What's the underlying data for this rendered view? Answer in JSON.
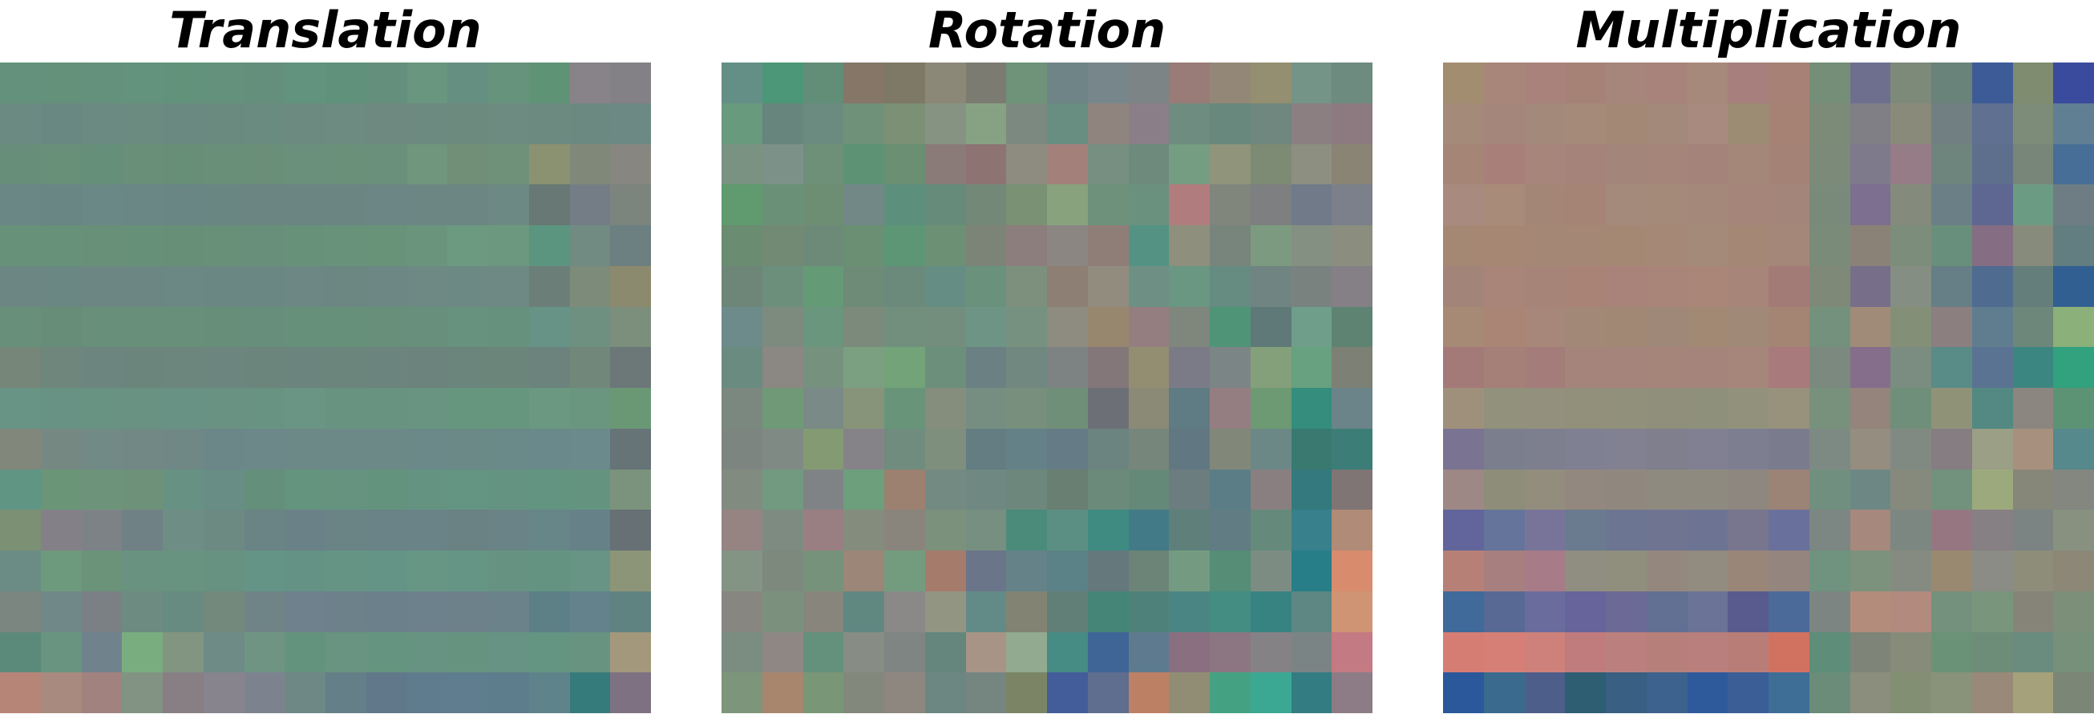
{
  "panels": [
    {
      "id": "translation",
      "title": "Translation",
      "rows": [
        [
          "#63917b",
          "#639179",
          "#64917c",
          "#63927d",
          "#63927b",
          "#63917b",
          "#648f7d",
          "#61937e",
          "#5f917b",
          "#648f7c",
          "#69967f",
          "#658f80",
          "#65937c",
          "#5f9376",
          "#888388",
          "#838086"
        ],
        [
          "#6a8a82",
          "#6a8882",
          "#6a8a82",
          "#6b8a80",
          "#6a8a81",
          "#6a8a80",
          "#6a8b80",
          "#6c8a7f",
          "#6d8b80",
          "#6e8a80",
          "#6c8a80",
          "#6c8a7d",
          "#6d8b80",
          "#6d8a80",
          "#6c8981",
          "#6c8983"
        ],
        [
          "#678e78",
          "#688f78",
          "#658f79",
          "#6a8f78",
          "#678f78",
          "#6a8f79",
          "#6a8e78",
          "#6a907b",
          "#6a907a",
          "#6a8f7a",
          "#70967d",
          "#718e77",
          "#6f917a",
          "#8b9271",
          "#80887a",
          "#878680"
        ],
        [
          "#6a8685",
          "#698685",
          "#6a8885",
          "#6a8685",
          "#698685",
          "#6a8683",
          "#6b8583",
          "#6b8583",
          "#6b8682",
          "#6b8684",
          "#6c8783",
          "#6c8783",
          "#6d8983",
          "#687874",
          "#747d86",
          "#7b847d"
        ],
        [
          "#679179",
          "#68917a",
          "#689079",
          "#679079",
          "#678f78",
          "#689079",
          "#688f79",
          "#68917a",
          "#689279",
          "#689379",
          "#6a957c",
          "#6b9a80",
          "#6c987f",
          "#5b947f",
          "#718b82",
          "#6c7f81"
        ],
        [
          "#6c8683",
          "#6a8784",
          "#6c8684",
          "#6c8684",
          "#6c8884",
          "#6a8784",
          "#6a8783",
          "#6c8784",
          "#6c8682",
          "#6c8784",
          "#6e8984",
          "#6d8983",
          "#6e8983",
          "#6b7f78",
          "#7c8b7a",
          "#8c8a6e"
        ],
        [
          "#678f7a",
          "#678d79",
          "#678f7a",
          "#678f79",
          "#678f79",
          "#678e79",
          "#678e7b",
          "#67907b",
          "#67907a",
          "#678f79",
          "#688f7b",
          "#66927e",
          "#66927d",
          "#679386",
          "#6e9080",
          "#7c8f7c"
        ],
        [
          "#768679",
          "#6f867d",
          "#6c857e",
          "#6c857c",
          "#6d867d",
          "#6c857e",
          "#6b857d",
          "#6b847e",
          "#6b857d",
          "#6b847d",
          "#6c837d",
          "#6b857c",
          "#6c857b",
          "#6b837c",
          "#708779",
          "#6c7778"
        ],
        [
          "#679485",
          "#689283",
          "#689382",
          "#699283",
          "#689283",
          "#699283",
          "#689382",
          "#6a9483",
          "#689381",
          "#689381",
          "#689481",
          "#67967f",
          "#67967e",
          "#6a9880",
          "#6a9680",
          "#6a9875"
        ],
        [
          "#82877c",
          "#758982",
          "#718a85",
          "#718885",
          "#708885",
          "#6c8788",
          "#6c8888",
          "#6d8987",
          "#6c8988",
          "#6c8987",
          "#6b8988",
          "#6b8987",
          "#6a8989",
          "#6a898a",
          "#6b8a8b",
          "#667478"
        ],
        [
          "#609584",
          "#6a9677",
          "#6d947a",
          "#6e9179",
          "#679283",
          "#678d84",
          "#648f7b",
          "#64937e",
          "#659380",
          "#63937d",
          "#649381",
          "#649482",
          "#649381",
          "#629481",
          "#649480",
          "#7b937d"
        ],
        [
          "#7c9074",
          "#848088",
          "#7d8286",
          "#708186",
          "#6d8d85",
          "#6c8a82",
          "#6a8384",
          "#6a8287",
          "#6a8486",
          "#698387",
          "#698387",
          "#6a8284",
          "#698386",
          "#678688",
          "#668288",
          "#667075"
        ],
        [
          "#6a8c84",
          "#6d9a7c",
          "#6b9379",
          "#699380",
          "#689380",
          "#679281",
          "#649486",
          "#649284",
          "#659485",
          "#649485",
          "#679685",
          "#659685",
          "#669381",
          "#649382",
          "#679484",
          "#8d9578"
        ],
        [
          "#7c8680",
          "#718889",
          "#7b8084",
          "#6d8b81",
          "#688b81",
          "#73897c",
          "#6f8487",
          "#6e818c",
          "#6c8189",
          "#6b808b",
          "#6d818c",
          "#6d818b",
          "#6b828b",
          "#5d7f86",
          "#64828b",
          "#5f8381"
        ],
        [
          "#5c8a7a",
          "#699480",
          "#70838d",
          "#79ad80",
          "#829580",
          "#6e8b86",
          "#6f9484",
          "#64937d",
          "#689481",
          "#659580",
          "#679482",
          "#669380",
          "#669384",
          "#649482",
          "#679380",
          "#a3987c"
        ],
        [
          "#b68578",
          "#a88b7e",
          "#a1827e",
          "#829383",
          "#877f84",
          "#87848d",
          "#7c838f",
          "#6e8886",
          "#657f88",
          "#61788b",
          "#5f7c8e",
          "#5f7d8e",
          "#5e7d8c",
          "#5e838a",
          "#367b7c",
          "#7e7282"
        ]
      ]
    },
    {
      "id": "rotation",
      "title": "Rotation",
      "rows": [
        [
          "#648f86",
          "#4c9777",
          "#628e77",
          "#857668",
          "#7e7866",
          "#8b8878",
          "#7c7b71",
          "#6f9378",
          "#6f8487",
          "#77868a",
          "#7d8485",
          "#997c77",
          "#938877",
          "#938f70",
          "#739486",
          "#6d8b7e"
        ],
        [
          "#689a7d",
          "#67857c",
          "#6b8b81",
          "#6f917a",
          "#7b9075",
          "#869382",
          "#87a283",
          "#7c8981",
          "#688e82",
          "#90857e",
          "#8a7f88",
          "#6e8c80",
          "#68887e",
          "#6f877e",
          "#8b7f82",
          "#8c7a80"
        ],
        [
          "#799281",
          "#7c9288",
          "#6e8f78",
          "#5e9274",
          "#6a8f73",
          "#8a7b78",
          "#8d7372",
          "#8e8c80",
          "#a4807b",
          "#768f80",
          "#6d8a7c",
          "#759d82",
          "#8f947a",
          "#7d8a74",
          "#8d8f81",
          "#8a8475"
        ],
        [
          "#5f9b6e",
          "#6a9177",
          "#6e8e73",
          "#718887",
          "#5d8f7d",
          "#668b7b",
          "#748878",
          "#7a9174",
          "#88a27e",
          "#6e917c",
          "#69917d",
          "#b17c7e",
          "#80867b",
          "#7d7f80",
          "#707a89",
          "#7b808b"
        ],
        [
          "#6a8c71",
          "#728a73",
          "#6d8a79",
          "#6a8f73",
          "#5c9675",
          "#6b9073",
          "#7c8377",
          "#8c7e7c",
          "#8b8681",
          "#8f7d77",
          "#549283",
          "#8e8f7c",
          "#77857c",
          "#7c9a7f",
          "#849081",
          "#8b8e7e"
        ],
        [
          "#6e8677",
          "#6c8f7b",
          "#659a77",
          "#6d8b77",
          "#6b8a7c",
          "#668d84",
          "#6a917c",
          "#7d8f7d",
          "#8d7f74",
          "#928c7f",
          "#6e9084",
          "#699782",
          "#668b81",
          "#708582",
          "#7a8280",
          "#848086"
        ],
        [
          "#6e8b8c",
          "#7d8b7f",
          "#69967c",
          "#7c8a7b",
          "#728f7e",
          "#748e7e",
          "#6d9485",
          "#779181",
          "#8e8b80",
          "#98876f",
          "#957e80",
          "#7f867c",
          "#509478",
          "#5f7978",
          "#6f9e8a",
          "#5f8372"
        ],
        [
          "#6a8b7f",
          "#8b8782",
          "#77917f",
          "#7aa081",
          "#73a378",
          "#6c8f7c",
          "#6b8083",
          "#708880",
          "#7d8382",
          "#847779",
          "#938e72",
          "#7b7b88",
          "#7c8585",
          "#83a07b",
          "#68a17f",
          "#7c8075"
        ],
        [
          "#7a887f",
          "#6f9977",
          "#7a8a87",
          "#879479",
          "#68957a",
          "#858d7c",
          "#768e82",
          "#778f7c",
          "#708f78",
          "#6d6f77",
          "#8a8a76",
          "#5f7b83",
          "#947e81",
          "#6d9a72",
          "#348d7d",
          "#6b848a"
        ],
        [
          "#7d8580",
          "#808a85",
          "#839a73",
          "#858388",
          "#6f8c7e",
          "#7e8f7e",
          "#647d82",
          "#648187",
          "#657c86",
          "#6c847f",
          "#77867a",
          "#617883",
          "#818879",
          "#6b8886",
          "#39796f",
          "#3c7e77"
        ],
        [
          "#828b7f",
          "#719a80",
          "#7f8385",
          "#6d9f7c",
          "#9c8070",
          "#738a83",
          "#6f8982",
          "#6d877c",
          "#687f72",
          "#6b8a7a",
          "#658979",
          "#6c7d7f",
          "#5b7d86",
          "#897f80",
          "#34797d",
          "#807575"
        ],
        [
          "#958481",
          "#7e8b81",
          "#9a7f82",
          "#848c7d",
          "#8a857c",
          "#7b917c",
          "#778f80",
          "#4b8b7a",
          "#5c8f83",
          "#3f8b82",
          "#427b87",
          "#5f807a",
          "#627c84",
          "#658a7b",
          "#38808c",
          "#b08b78"
        ],
        [
          "#849484",
          "#7c897c",
          "#77927a",
          "#9b8677",
          "#739c7f",
          "#a57b6c",
          "#6b7589",
          "#648288",
          "#5b8286",
          "#65797d",
          "#6c8477",
          "#749b82",
          "#558d77",
          "#7d8c83",
          "#287e88",
          "#d88c6d"
        ],
        [
          "#888680",
          "#7c917d",
          "#88857c",
          "#618781",
          "#8a8987",
          "#939583",
          "#628b87",
          "#828373",
          "#617f77",
          "#448577",
          "#4e817a",
          "#4b8583",
          "#438d82",
          "#368382",
          "#5e8783",
          "#cf9474"
        ],
        [
          "#7b8c80",
          "#8e8783",
          "#63917b",
          "#878d85",
          "#7e8583",
          "#64867c",
          "#a79486",
          "#91aa90",
          "#468b84",
          "#3f6596",
          "#5e7a8e",
          "#8a6f80",
          "#8b7682",
          "#858286",
          "#7b8485",
          "#c47a82"
        ],
        [
          "#7d957a",
          "#a8866e",
          "#799677",
          "#83887c",
          "#8e8780",
          "#6c8682",
          "#758680",
          "#7b8566",
          "#435d9a",
          "#5f6d8e",
          "#bc8164",
          "#918d74",
          "#44a283",
          "#3ba893",
          "#337c82",
          "#8d7c86"
        ]
      ]
    },
    {
      "id": "multiplication",
      "title": "Multiplication",
      "rows": [
        [
          "#a38d70",
          "#a8877a",
          "#aa827c",
          "#a68276",
          "#a6857b",
          "#a7837b",
          "#a7897b",
          "#a77f7c",
          "#a78076",
          "#748e78",
          "#6e6f8f",
          "#7d8a7a",
          "#69827a",
          "#3d5c97",
          "#7f8c6f",
          "#3a4b9d"
        ],
        [
          "#a48a78",
          "#a4867a",
          "#a38979",
          "#a58979",
          "#a48876",
          "#a28979",
          "#a88a7e",
          "#9c8c74",
          "#a68275",
          "#7c8a78",
          "#7f7f85",
          "#8a8a7a",
          "#717f83",
          "#5f7091",
          "#7d8c79",
          "#617f92"
        ],
        [
          "#a48576",
          "#a97f7a",
          "#a8857b",
          "#a6837a",
          "#a4857a",
          "#a58579",
          "#a4837a",
          "#a58779",
          "#a48276",
          "#7c8a79",
          "#7e7a8c",
          "#967c86",
          "#6e857e",
          "#5e6f8e",
          "#788579",
          "#466e96"
        ],
        [
          "#a88b7e",
          "#a98b79",
          "#a48677",
          "#a58476",
          "#a38a7b",
          "#a48a79",
          "#a48879",
          "#a58579",
          "#a48579",
          "#7a8a7a",
          "#7c6f8f",
          "#848b7c",
          "#6b7f87",
          "#5d6792",
          "#6c9b83",
          "#6d7d83"
        ],
        [
          "#a58874",
          "#a58773",
          "#a58775",
          "#a48775",
          "#a58874",
          "#a58876",
          "#a48a79",
          "#a48774",
          "#a48779",
          "#7a8b7a",
          "#8a8276",
          "#7d8d7b",
          "#688f7b",
          "#856d83",
          "#878b7b",
          "#637e81"
        ],
        [
          "#a38478",
          "#a98479",
          "#a68578",
          "#a98376",
          "#a98279",
          "#a98478",
          "#a98678",
          "#a78579",
          "#a37b76",
          "#7e8a77",
          "#776e8a",
          "#858e82",
          "#667e85",
          "#4f6b90",
          "#637e7b",
          "#325f92"
        ],
        [
          "#a78a76",
          "#aa8575",
          "#a68779",
          "#a28876",
          "#a18875",
          "#a08878",
          "#a18973",
          "#a08977",
          "#a48573",
          "#73917d",
          "#a08b79",
          "#839077",
          "#8c7f80",
          "#5f7d8f",
          "#6d877a",
          "#8bb079"
        ],
        [
          "#a47a79",
          "#a58079",
          "#a47c79",
          "#a5857b",
          "#a5847c",
          "#a58479",
          "#a5847c",
          "#a6857b",
          "#a97a7b",
          "#7c897f",
          "#856e8c",
          "#7a8d80",
          "#598b87",
          "#5b7393",
          "#3c8682",
          "#32a17e"
        ],
        [
          "#9f907b",
          "#91917c",
          "#93907d",
          "#92907a",
          "#91907b",
          "#908f7b",
          "#8e907b",
          "#92917c",
          "#98917c",
          "#78917c",
          "#95847b",
          "#708f7a",
          "#909277",
          "#538982",
          "#8b867f",
          "#5d9375"
        ],
        [
          "#7a7492",
          "#7b7f8d",
          "#7e7f8e",
          "#7f8091",
          "#818192",
          "#7f7f8e",
          "#818093",
          "#7d7f91",
          "#7b7b8e",
          "#7d8a83",
          "#958d7f",
          "#818a82",
          "#857d82",
          "#9a9f86",
          "#a8907e",
          "#55898c"
        ],
        [
          "#9e8886",
          "#8e8d7a",
          "#938d7d",
          "#93887f",
          "#90887f",
          "#8f8a80",
          "#8f8a80",
          "#8e877f",
          "#9b8376",
          "#718f7f",
          "#6d8884",
          "#868a7c",
          "#72927e",
          "#9ca97d",
          "#868778",
          "#848780"
        ],
        [
          "#62659b",
          "#64749a",
          "#787499",
          "#6a7a8f",
          "#6c7591",
          "#6f7491",
          "#6d7493",
          "#78758f",
          "#69709b",
          "#7c8682",
          "#a7887c",
          "#7d8781",
          "#967781",
          "#867f83",
          "#7b8482",
          "#889180"
        ],
        [
          "#b78077",
          "#a67f7e",
          "#a77b88",
          "#8f8e80",
          "#908f7e",
          "#94887e",
          "#928b80",
          "#998678",
          "#94857f",
          "#6f937e",
          "#7c927d",
          "#858b81",
          "#9a8971",
          "#8a8c85",
          "#8e8d7a",
          "#8c8777"
        ],
        [
          "#406a99",
          "#586994",
          "#6a6c9e",
          "#66649b",
          "#6d6996",
          "#617093",
          "#6b7396",
          "#595b8e",
          "#4c6a99",
          "#7c8582",
          "#b48c7b",
          "#b38a7e",
          "#73917c",
          "#79957c",
          "#868478",
          "#7c8f78"
        ],
        [
          "#d67d73",
          "#d57f76",
          "#ce817a",
          "#c07b7c",
          "#bb807d",
          "#b67f79",
          "#b87f7c",
          "#b97d77",
          "#d17261",
          "#5e8e79",
          "#7e8477",
          "#868c79",
          "#6a9276",
          "#6d8d78",
          "#6a8c7e",
          "#76907a"
        ],
        [
          "#2a589a",
          "#3b6a8f",
          "#4e5e8b",
          "#2d5e72",
          "#395f83",
          "#3e628e",
          "#2e5a9b",
          "#3b5e97",
          "#3e6e96",
          "#6a8c78",
          "#8b8e7c",
          "#838f73",
          "#89937a",
          "#998979",
          "#a4a17b",
          "#7c8676"
        ]
      ]
    }
  ]
}
